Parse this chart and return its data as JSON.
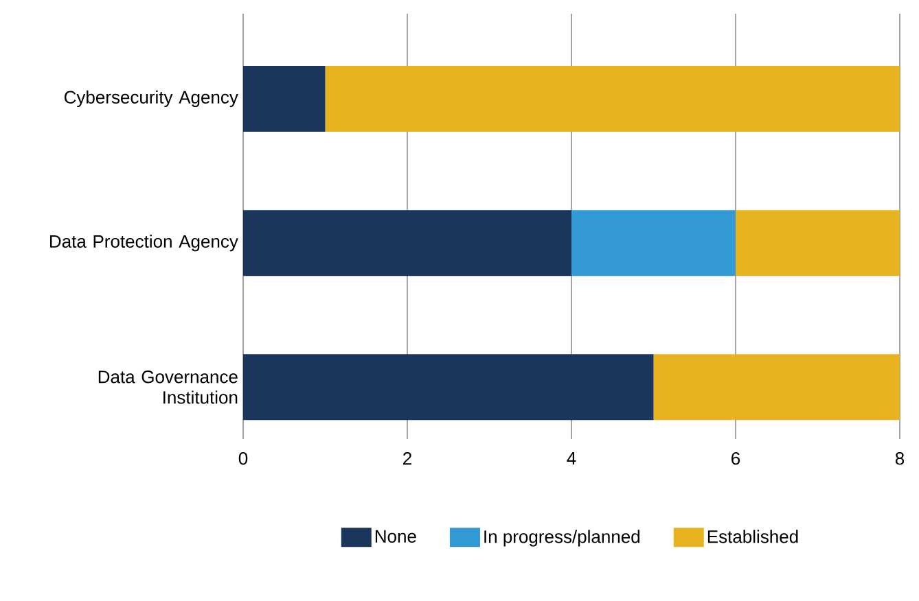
{
  "chart_data": {
    "type": "bar",
    "orientation": "horizontal",
    "stacked": true,
    "categories": [
      "Cybersecurity Agency",
      "Data Protection Agency",
      "Data Governance Institution"
    ],
    "series": [
      {
        "name": "None",
        "color": "#1b365d",
        "values": [
          1,
          4,
          5
        ]
      },
      {
        "name": "In progress/planned",
        "color": "#3399d4",
        "values": [
          0,
          2,
          0
        ]
      },
      {
        "name": "Established",
        "color": "#e8b321",
        "values": [
          7,
          2,
          3
        ]
      }
    ],
    "xlim": [
      0,
      8
    ],
    "xticks": [
      0,
      2,
      4,
      6,
      8
    ],
    "grid": "x",
    "legend": "bottom"
  }
}
